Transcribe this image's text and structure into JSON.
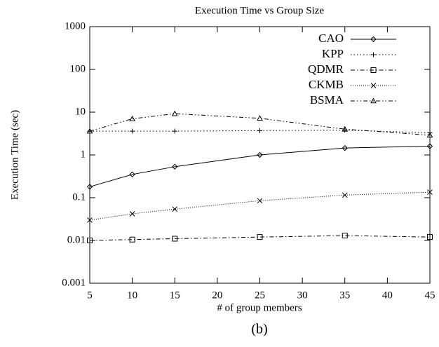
{
  "chart_data": {
    "type": "line",
    "title": "Execution Time vs Group Size",
    "xlabel": "# of group members",
    "ylabel": "Execution Time (sec)",
    "caption": "(b)",
    "x": [
      5,
      10,
      15,
      25,
      35,
      45
    ],
    "series": [
      {
        "name": "CAO",
        "color": "#000000",
        "marker": "diamond",
        "style": "solid",
        "values": [
          0.18,
          0.35,
          0.53,
          1.0,
          1.45,
          1.6
        ]
      },
      {
        "name": "KPP",
        "color": "#000000",
        "marker": "plus",
        "style": "dotted",
        "values": [
          3.6,
          3.6,
          3.6,
          3.7,
          3.8,
          3.3
        ]
      },
      {
        "name": "QDMR",
        "color": "#000000",
        "marker": "square",
        "style": "dashdot",
        "values": [
          0.01,
          0.0105,
          0.011,
          0.012,
          0.013,
          0.012
        ]
      },
      {
        "name": "CKMB",
        "color": "#000000",
        "marker": "cross",
        "style": "finedot",
        "values": [
          0.03,
          0.042,
          0.054,
          0.085,
          0.115,
          0.135
        ]
      },
      {
        "name": "BSMA",
        "color": "#000000",
        "marker": "triangle",
        "style": "dashdotdot",
        "values": [
          3.6,
          7,
          9.2,
          7.2,
          4,
          2.9
        ]
      }
    ],
    "xlim": [
      5,
      45
    ],
    "xticks": [
      5,
      10,
      15,
      20,
      25,
      30,
      35,
      40,
      45
    ],
    "ylim": [
      0.001,
      1000
    ],
    "yticks": [
      0.001,
      0.01,
      0.1,
      1,
      10,
      100,
      1000
    ],
    "ylog": true,
    "grid": false,
    "legend": "top-right"
  }
}
